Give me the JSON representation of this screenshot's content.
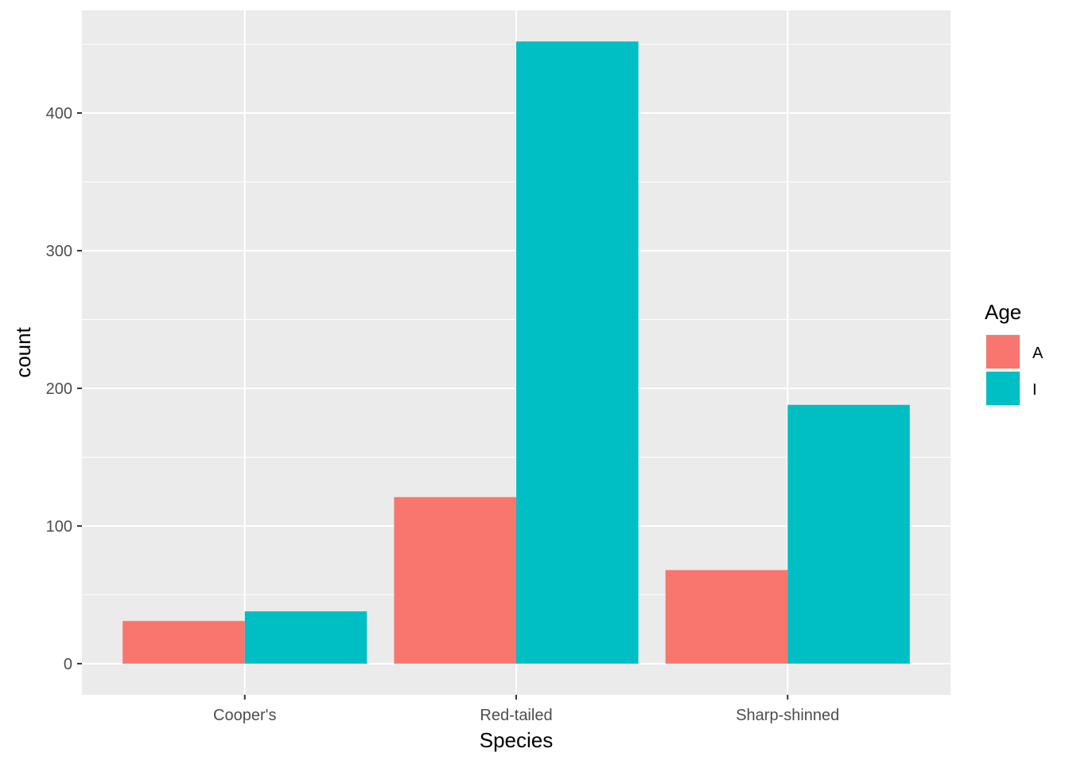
{
  "chart_data": {
    "type": "bar",
    "xlabel": "Species",
    "ylabel": "count",
    "categories": [
      "Cooper's",
      "Red-tailed",
      "Sharp-shinned"
    ],
    "series": [
      {
        "name": "A",
        "color": "#F8766D",
        "values": [
          31,
          121,
          68
        ]
      },
      {
        "name": "I",
        "color": "#00BFC4",
        "values": [
          38,
          452,
          188
        ]
      }
    ],
    "legend": {
      "title": "Age",
      "position": "right"
    },
    "ylim": [
      -22.6,
      474.6
    ],
    "yticks": [
      0,
      100,
      200,
      300,
      400
    ],
    "grid": true,
    "panel_background": "#EBEBEB"
  }
}
